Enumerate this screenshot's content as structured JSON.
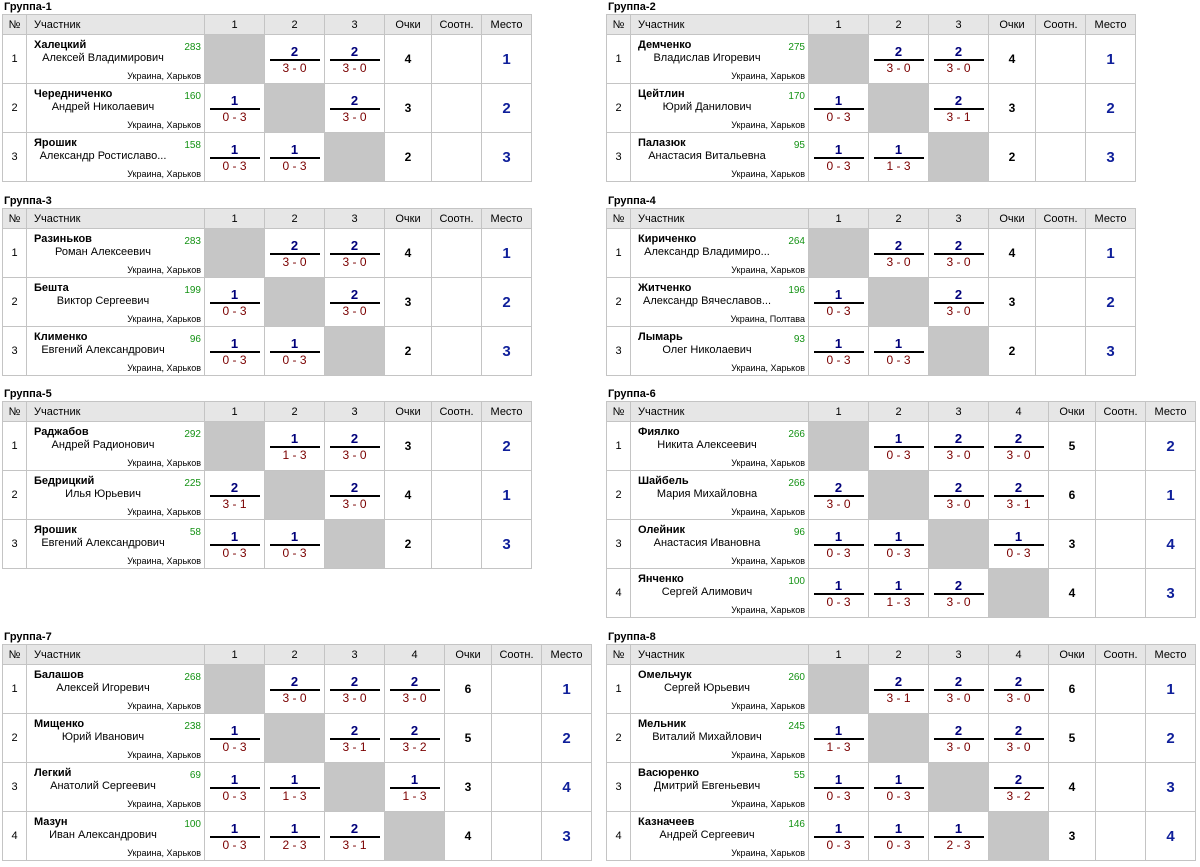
{
  "headers": {
    "num": "№",
    "player": "Участник",
    "points": "Очки",
    "ratio": "Соотн.",
    "place": "Место"
  },
  "groups": [
    {
      "title": "Группа-1",
      "players": [
        {
          "num": "1",
          "last": "Халецкий",
          "full": "Алексей Владимирович",
          "rating": "283",
          "city": "Украина, Харьков",
          "results": [
            null,
            [
              "2",
              "3 - 0"
            ],
            [
              "2",
              "3 - 0"
            ]
          ],
          "points": "4",
          "ratio": "",
          "place": "1"
        },
        {
          "num": "2",
          "last": "Чередниченко",
          "full": "Андрей Николаевич",
          "rating": "160",
          "city": "Украина, Харьков",
          "results": [
            [
              "1",
              "0 - 3"
            ],
            null,
            [
              "2",
              "3 - 0"
            ]
          ],
          "points": "3",
          "ratio": "",
          "place": "2"
        },
        {
          "num": "3",
          "last": "Ярошик",
          "full": "Александр Ростиславо...",
          "rating": "158",
          "city": "Украина, Харьков",
          "results": [
            [
              "1",
              "0 - 3"
            ],
            [
              "1",
              "0 - 3"
            ],
            null
          ],
          "points": "2",
          "ratio": "",
          "place": "3"
        }
      ]
    },
    {
      "title": "Группа-2",
      "players": [
        {
          "num": "1",
          "last": "Демченко",
          "full": "Владислав Игоревич",
          "rating": "275",
          "city": "Украина, Харьков",
          "results": [
            null,
            [
              "2",
              "3 - 0"
            ],
            [
              "2",
              "3 - 0"
            ]
          ],
          "points": "4",
          "ratio": "",
          "place": "1"
        },
        {
          "num": "2",
          "last": "Цейтлин",
          "full": "Юрий Данилович",
          "rating": "170",
          "city": "Украина, Харьков",
          "results": [
            [
              "1",
              "0 - 3"
            ],
            null,
            [
              "2",
              "3 - 1"
            ]
          ],
          "points": "3",
          "ratio": "",
          "place": "2"
        },
        {
          "num": "3",
          "last": "Палазюк",
          "full": "Анастасия Витальевна",
          "rating": "95",
          "city": "Украина, Харьков",
          "results": [
            [
              "1",
              "0 - 3"
            ],
            [
              "1",
              "1 - 3"
            ],
            null
          ],
          "points": "2",
          "ratio": "",
          "place": "3"
        }
      ]
    },
    {
      "title": "Группа-3",
      "players": [
        {
          "num": "1",
          "last": "Разиньков",
          "full": "Роман Алексеевич",
          "rating": "283",
          "city": "Украина, Харьков",
          "results": [
            null,
            [
              "2",
              "3 - 0"
            ],
            [
              "2",
              "3 - 0"
            ]
          ],
          "points": "4",
          "ratio": "",
          "place": "1"
        },
        {
          "num": "2",
          "last": "Бешта",
          "full": "Виктор Сергеевич",
          "rating": "199",
          "city": "Украина, Харьков",
          "results": [
            [
              "1",
              "0 - 3"
            ],
            null,
            [
              "2",
              "3 - 0"
            ]
          ],
          "points": "3",
          "ratio": "",
          "place": "2"
        },
        {
          "num": "3",
          "last": "Клименко",
          "full": "Евгений Александрович",
          "rating": "96",
          "city": "Украина, Харьков",
          "results": [
            [
              "1",
              "0 - 3"
            ],
            [
              "1",
              "0 - 3"
            ],
            null
          ],
          "points": "2",
          "ratio": "",
          "place": "3"
        }
      ]
    },
    {
      "title": "Группа-4",
      "players": [
        {
          "num": "1",
          "last": "Кириченко",
          "full": "Александр Владимиро...",
          "rating": "264",
          "city": "Украина, Харьков",
          "results": [
            null,
            [
              "2",
              "3 - 0"
            ],
            [
              "2",
              "3 - 0"
            ]
          ],
          "points": "4",
          "ratio": "",
          "place": "1"
        },
        {
          "num": "2",
          "last": "Житченко",
          "full": "Александр Вячеславов...",
          "rating": "196",
          "city": "Украина, Полтава",
          "results": [
            [
              "1",
              "0 - 3"
            ],
            null,
            [
              "2",
              "3 - 0"
            ]
          ],
          "points": "3",
          "ratio": "",
          "place": "2"
        },
        {
          "num": "3",
          "last": "Лымарь",
          "full": "Олег Николаевич",
          "rating": "93",
          "city": "Украина, Харьков",
          "results": [
            [
              "1",
              "0 - 3"
            ],
            [
              "1",
              "0 - 3"
            ],
            null
          ],
          "points": "2",
          "ratio": "",
          "place": "3"
        }
      ]
    },
    {
      "title": "Группа-5",
      "players": [
        {
          "num": "1",
          "last": "Раджабов",
          "full": "Андрей Радионович",
          "rating": "292",
          "city": "Украина, Харьков",
          "results": [
            null,
            [
              "1",
              "1 - 3"
            ],
            [
              "2",
              "3 - 0"
            ]
          ],
          "points": "3",
          "ratio": "",
          "place": "2"
        },
        {
          "num": "2",
          "last": "Бедрицкий",
          "full": "Илья Юрьевич",
          "rating": "225",
          "city": "Украина, Харьков",
          "results": [
            [
              "2",
              "3 - 1"
            ],
            null,
            [
              "2",
              "3 - 0"
            ]
          ],
          "points": "4",
          "ratio": "",
          "place": "1"
        },
        {
          "num": "3",
          "last": "Ярошик",
          "full": "Евгений Александрович",
          "rating": "58",
          "city": "Украина, Харьков",
          "results": [
            [
              "1",
              "0 - 3"
            ],
            [
              "1",
              "0 - 3"
            ],
            null
          ],
          "points": "2",
          "ratio": "",
          "place": "3"
        }
      ]
    },
    {
      "title": "Группа-6",
      "players": [
        {
          "num": "1",
          "last": "Фиялко",
          "full": "Никита Алексеевич",
          "rating": "266",
          "city": "Украина, Харьков",
          "results": [
            null,
            [
              "1",
              "0 - 3"
            ],
            [
              "2",
              "3 - 0"
            ],
            [
              "2",
              "3 - 0"
            ]
          ],
          "points": "5",
          "ratio": "",
          "place": "2"
        },
        {
          "num": "2",
          "last": "Шайбель",
          "full": "Мария Михайловна",
          "rating": "266",
          "city": "Украина, Харьков",
          "results": [
            [
              "2",
              "3 - 0"
            ],
            null,
            [
              "2",
              "3 - 0"
            ],
            [
              "2",
              "3 - 1"
            ]
          ],
          "points": "6",
          "ratio": "",
          "place": "1"
        },
        {
          "num": "3",
          "last": "Олейник",
          "full": "Анастасия Ивановна",
          "rating": "96",
          "city": "Украина, Харьков",
          "results": [
            [
              "1",
              "0 - 3"
            ],
            [
              "1",
              "0 - 3"
            ],
            null,
            [
              "1",
              "0 - 3"
            ]
          ],
          "points": "3",
          "ratio": "",
          "place": "4"
        },
        {
          "num": "4",
          "last": "Янченко",
          "full": "Сергей Алимович",
          "rating": "100",
          "city": "Украина, Харьков",
          "results": [
            [
              "1",
              "0 - 3"
            ],
            [
              "1",
              "1 - 3"
            ],
            [
              "2",
              "3 - 0"
            ],
            null
          ],
          "points": "4",
          "ratio": "",
          "place": "3"
        }
      ]
    },
    {
      "title": "Группа-7",
      "players": [
        {
          "num": "1",
          "last": "Балашов",
          "full": "Алексей Игоревич",
          "rating": "268",
          "city": "Украина, Харьков",
          "results": [
            null,
            [
              "2",
              "3 - 0"
            ],
            [
              "2",
              "3 - 0"
            ],
            [
              "2",
              "3 - 0"
            ]
          ],
          "points": "6",
          "ratio": "",
          "place": "1"
        },
        {
          "num": "2",
          "last": "Мищенко",
          "full": "Юрий Иванович",
          "rating": "238",
          "city": "Украина, Харьков",
          "results": [
            [
              "1",
              "0 - 3"
            ],
            null,
            [
              "2",
              "3 - 1"
            ],
            [
              "2",
              "3 - 2"
            ]
          ],
          "points": "5",
          "ratio": "",
          "place": "2"
        },
        {
          "num": "3",
          "last": "Легкий",
          "full": "Анатолий Сергеевич",
          "rating": "69",
          "city": "Украина, Харьков",
          "results": [
            [
              "1",
              "0 - 3"
            ],
            [
              "1",
              "1 - 3"
            ],
            null,
            [
              "1",
              "1 - 3"
            ]
          ],
          "points": "3",
          "ratio": "",
          "place": "4"
        },
        {
          "num": "4",
          "last": "Мазун",
          "full": "Иван Александрович",
          "rating": "100",
          "city": "Украина, Харьков",
          "results": [
            [
              "1",
              "0 - 3"
            ],
            [
              "1",
              "2 - 3"
            ],
            [
              "2",
              "3 - 1"
            ],
            null
          ],
          "points": "4",
          "ratio": "",
          "place": "3"
        }
      ]
    },
    {
      "title": "Группа-8",
      "players": [
        {
          "num": "1",
          "last": "Омельчук",
          "full": "Сергей Юрьевич",
          "rating": "260",
          "city": "Украина, Харьков",
          "results": [
            null,
            [
              "2",
              "3 - 1"
            ],
            [
              "2",
              "3 - 0"
            ],
            [
              "2",
              "3 - 0"
            ]
          ],
          "points": "6",
          "ratio": "",
          "place": "1"
        },
        {
          "num": "2",
          "last": "Мельник",
          "full": "Виталий Михайлович",
          "rating": "245",
          "city": "Украина, Харьков",
          "results": [
            [
              "1",
              "1 - 3"
            ],
            null,
            [
              "2",
              "3 - 0"
            ],
            [
              "2",
              "3 - 0"
            ]
          ],
          "points": "5",
          "ratio": "",
          "place": "2"
        },
        {
          "num": "3",
          "last": "Васюренко",
          "full": "Дмитрий Евгеньевич",
          "rating": "55",
          "city": "Украина, Харьков",
          "results": [
            [
              "1",
              "0 - 3"
            ],
            [
              "1",
              "0 - 3"
            ],
            null,
            [
              "2",
              "3 - 2"
            ]
          ],
          "points": "4",
          "ratio": "",
          "place": "3"
        },
        {
          "num": "4",
          "last": "Казначеев",
          "full": "Андрей Сергеевич",
          "rating": "146",
          "city": "Украина, Харьков",
          "results": [
            [
              "1",
              "0 - 3"
            ],
            [
              "1",
              "0 - 3"
            ],
            [
              "1",
              "2 - 3"
            ],
            null
          ],
          "points": "3",
          "ratio": "",
          "place": "4"
        }
      ]
    }
  ]
}
